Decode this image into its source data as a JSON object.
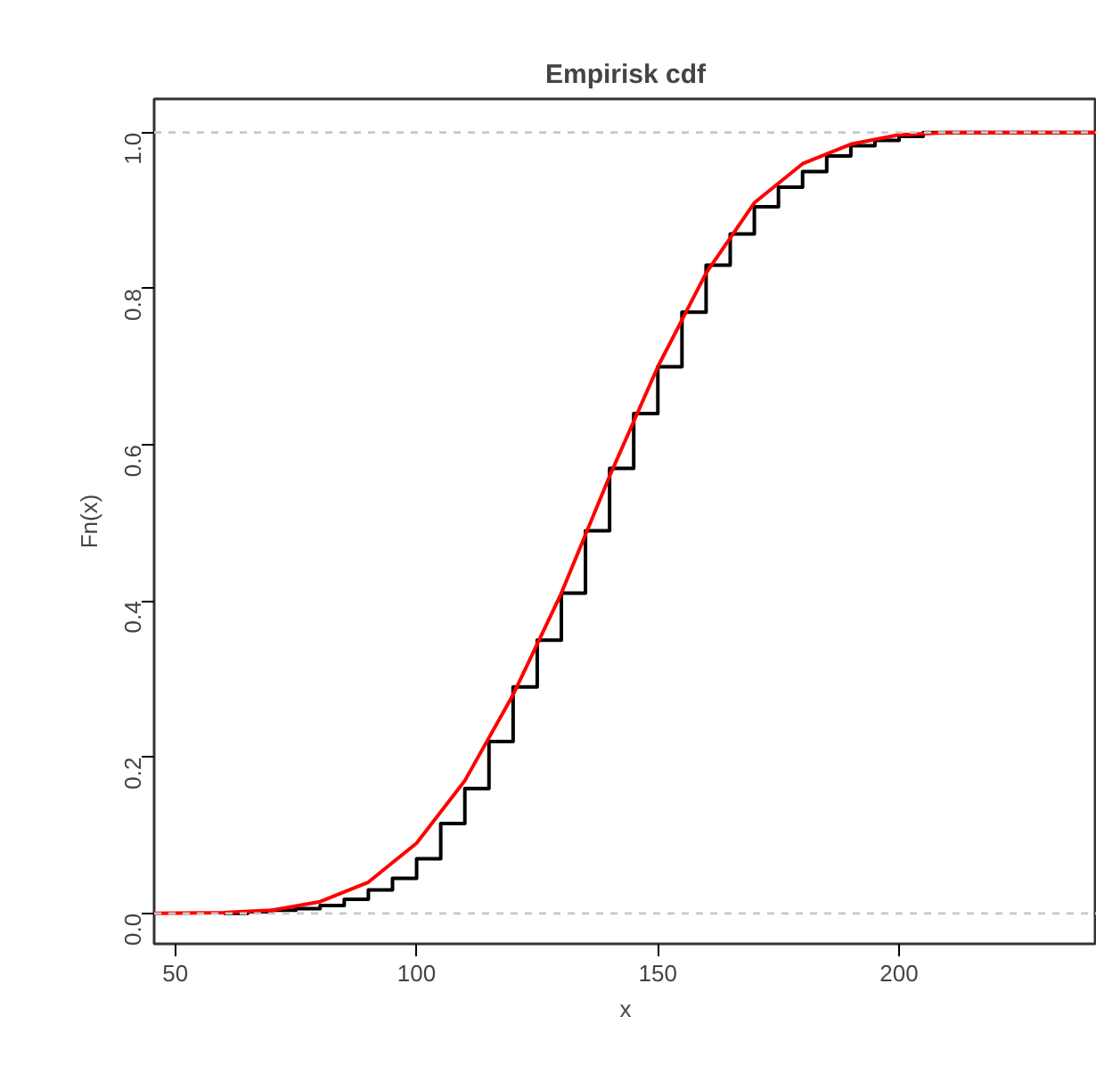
{
  "chart_data": {
    "type": "line",
    "title": "Empirisk cdf",
    "xlabel": "x",
    "ylabel": "Fn(x)",
    "xlim": [
      45.6,
      241
    ],
    "ylim": [
      -0.039,
      1.043
    ],
    "xticks": [
      50,
      100,
      150,
      200
    ],
    "yticks": [
      {
        "value": 0,
        "label": "0.0"
      },
      {
        "value": 0.2,
        "label": "0.2"
      },
      {
        "value": 0.4,
        "label": "0.4"
      },
      {
        "value": 0.6,
        "label": "0.6"
      },
      {
        "value": 0.8,
        "label": "0.8"
      },
      {
        "value": 1,
        "label": "1.0"
      }
    ],
    "grid": false,
    "marker": "none",
    "line_style": "solid",
    "ref_lines": [
      {
        "axis": "y",
        "value": 0,
        "color": "#c8c8c8",
        "line_style": "dashed"
      },
      {
        "axis": "y",
        "value": 1,
        "color": "#c8c8c8",
        "line_style": "dashed"
      }
    ],
    "series": [
      {
        "type": "step",
        "color": "#000000",
        "x": [
          60,
          65,
          70,
          75,
          80,
          85,
          90,
          95,
          100,
          105,
          110,
          115,
          120,
          125,
          130,
          135,
          140,
          145,
          150,
          155,
          160,
          165,
          170,
          175,
          180,
          185,
          190,
          195,
          200,
          205,
          241
        ],
        "values": [
          0,
          0.002,
          0.004,
          0.006,
          0.01,
          0.018,
          0.03,
          0.045,
          0.07,
          0.115,
          0.16,
          0.22,
          0.29,
          0.35,
          0.41,
          0.49,
          0.57,
          0.64,
          0.7,
          0.77,
          0.83,
          0.87,
          0.905,
          0.93,
          0.95,
          0.97,
          0.983,
          0.99,
          0.995,
          1,
          1
        ]
      },
      {
        "color": "#ff0000",
        "x": [
          45.6,
          60,
          70,
          80,
          90,
          100,
          110,
          120,
          130,
          140,
          150,
          160,
          170,
          180,
          190,
          200,
          210,
          241
        ],
        "values": [
          0,
          0.001,
          0.004,
          0.015,
          0.04,
          0.09,
          0.17,
          0.28,
          0.41,
          0.56,
          0.7,
          0.82,
          0.91,
          0.96,
          0.985,
          0.997,
          1,
          1
        ]
      }
    ]
  }
}
